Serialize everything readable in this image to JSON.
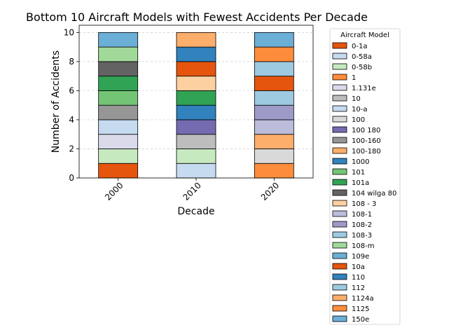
{
  "chart_data": {
    "type": "bar",
    "stacked": true,
    "title": "Bottom 10 Aircraft Models with Fewest Accidents Per Decade",
    "xlabel": "Decade",
    "ylabel": "Number of Accidents",
    "categories": [
      "2000",
      "2010",
      "2020"
    ],
    "ylim": [
      0,
      10.5
    ],
    "yticks": [
      "0",
      "2",
      "4",
      "6",
      "8",
      "10"
    ],
    "grid": "y-dashed",
    "legend": {
      "title": "Aircraft Model",
      "placement": "right-outside"
    },
    "series": [
      {
        "name": "0-1a",
        "color": "#e6550d",
        "values": [
          1,
          0,
          0
        ]
      },
      {
        "name": "0-58a",
        "color": "#c6dbef",
        "values": [
          0,
          1,
          0
        ]
      },
      {
        "name": "0-58b",
        "color": "#c7e9c0",
        "values": [
          1,
          1,
          0
        ]
      },
      {
        "name": "1",
        "color": "#fd8d3c",
        "values": [
          0,
          0,
          1
        ]
      },
      {
        "name": "1.131e",
        "color": "#dadaeb",
        "values": [
          1,
          0,
          0
        ]
      },
      {
        "name": "10",
        "color": "#bdbdbd",
        "values": [
          0,
          1,
          0
        ]
      },
      {
        "name": "10-a",
        "color": "#c6dbef",
        "values": [
          1,
          0,
          0
        ]
      },
      {
        "name": "100",
        "color": "#d9d9d9",
        "values": [
          0,
          0,
          1
        ]
      },
      {
        "name": "100 180",
        "color": "#756bb1",
        "values": [
          0,
          1,
          0
        ]
      },
      {
        "name": "100-160",
        "color": "#969696",
        "values": [
          1,
          0,
          0
        ]
      },
      {
        "name": "100-180",
        "color": "#fdae6b",
        "values": [
          0,
          0,
          1
        ]
      },
      {
        "name": "1000",
        "color": "#3182bd",
        "values": [
          0,
          1,
          0
        ]
      },
      {
        "name": "101",
        "color": "#74c476",
        "values": [
          1,
          0,
          0
        ]
      },
      {
        "name": "101a",
        "color": "#31a354",
        "values": [
          1,
          1,
          0
        ]
      },
      {
        "name": "104 wilga 80",
        "color": "#636363",
        "values": [
          1,
          0,
          0
        ]
      },
      {
        "name": "108 - 3",
        "color": "#fdd0a2",
        "values": [
          0,
          1,
          0
        ]
      },
      {
        "name": "108-1",
        "color": "#bcbddc",
        "values": [
          0,
          0,
          1
        ]
      },
      {
        "name": "108-2",
        "color": "#9e9ac8",
        "values": [
          0,
          0,
          1
        ]
      },
      {
        "name": "108-3",
        "color": "#9ecae1",
        "values": [
          0,
          0,
          1
        ]
      },
      {
        "name": "108-m",
        "color": "#a1d99b",
        "values": [
          1,
          0,
          0
        ]
      },
      {
        "name": "109e",
        "color": "#6baed6",
        "values": [
          1,
          0,
          0
        ]
      },
      {
        "name": "10a",
        "color": "#e6550d",
        "values": [
          0,
          1,
          1
        ]
      },
      {
        "name": "110",
        "color": "#3182bd",
        "values": [
          0,
          1,
          0
        ]
      },
      {
        "name": "112",
        "color": "#9ecae1",
        "values": [
          0,
          0,
          1
        ]
      },
      {
        "name": "1124a",
        "color": "#fdae6b",
        "values": [
          0,
          1,
          0
        ]
      },
      {
        "name": "1125",
        "color": "#fd8d3c",
        "values": [
          0,
          0,
          1
        ]
      },
      {
        "name": "150e",
        "color": "#6baed6",
        "values": [
          0,
          0,
          1
        ]
      }
    ]
  }
}
